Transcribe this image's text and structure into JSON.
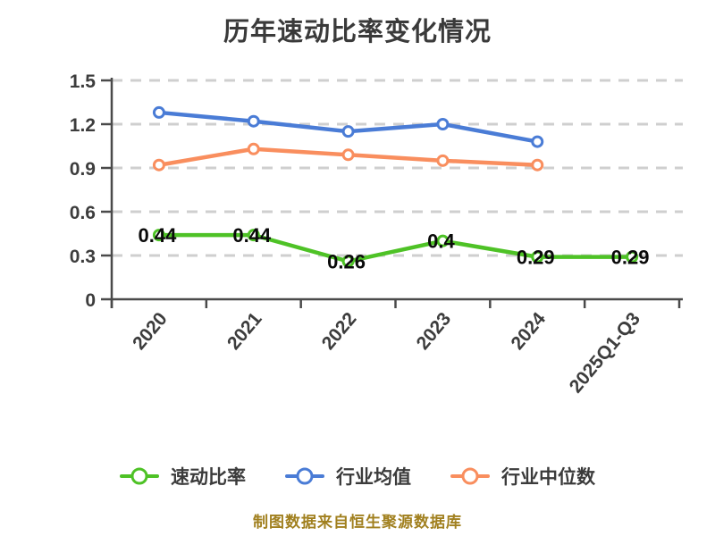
{
  "title": "历年速动比率变化情况",
  "footer": "制图数据来自恒生聚源数据库",
  "chart_data": {
    "type": "line",
    "title": "历年速动比率变化情况",
    "categories": [
      "2020",
      "2021",
      "2022",
      "2023",
      "2024",
      "2025Q1-Q3"
    ],
    "series": [
      {
        "name": "速动比率",
        "color": "#4EC226",
        "values": [
          0.44,
          0.44,
          0.26,
          0.4,
          0.29,
          0.29
        ],
        "point_labels": [
          "0.44",
          "0.44",
          "0.26",
          "0.4",
          "0.29",
          "0.29"
        ]
      },
      {
        "name": "行业均值",
        "color": "#4A7CD6",
        "values": [
          1.28,
          1.22,
          1.15,
          1.2,
          1.08,
          null
        ],
        "point_labels": null
      },
      {
        "name": "行业中位数",
        "color": "#F98E5E",
        "values": [
          0.92,
          1.03,
          0.99,
          0.95,
          0.92,
          null
        ],
        "point_labels": null
      }
    ],
    "ylim": [
      0,
      1.5
    ],
    "yticks": [
      0,
      0.3,
      0.6,
      0.9,
      1.2,
      1.5
    ],
    "ytick_labels": [
      "0",
      "0.3",
      "0.6",
      "0.9",
      "1.2",
      "1.5"
    ],
    "grid": "horizontal-dashed",
    "legend_position": "bottom",
    "marker": "circle-white-fill",
    "colors": {
      "grid": "#cfcfcf",
      "axis": "#4a4a4a",
      "tick_label": "#3d3d3d",
      "data_label": "#0a0a0a",
      "title": "#3a3a3a",
      "footer": "#A1801F",
      "background": "#ffffff"
    }
  },
  "legend": {
    "items": [
      {
        "label": "速动比率",
        "color": "#4EC226"
      },
      {
        "label": "行业均值",
        "color": "#4A7CD6"
      },
      {
        "label": "行业中位数",
        "color": "#F98E5E"
      }
    ]
  }
}
